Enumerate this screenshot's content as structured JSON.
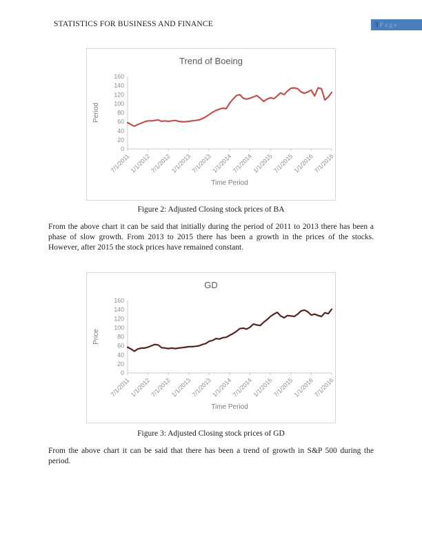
{
  "header": {
    "title": "STATISTICS FOR BUSINESS AND FINANCE",
    "page_number": "3",
    "page_suffix": "Page",
    "page_box_color": "#4a7ebb"
  },
  "figures": [
    {
      "caption": "Figure 2: Adjusted Closing stock prices of BA"
    },
    {
      "caption": "Figure 3: Adjusted Closing stock prices of GD"
    }
  ],
  "paragraphs": {
    "p1": "From the above chart it can be said that initially during the period of 2011 to 2013 there has been a phase of slow growth. From 2013 to 2015 there has been a growth in the prices of the stocks. However, after 2015 the stock prices have remained constant.",
    "p2": "From the above chart it can be said that there has been a trend of growth in S&P 500 during the period."
  },
  "chart_data": [
    {
      "type": "line",
      "title": "Trend of Boeing",
      "xlabel": "Time Period",
      "ylabel": "Period",
      "ylim": [
        0,
        160
      ],
      "y_ticks": [
        0,
        20,
        40,
        60,
        80,
        100,
        120,
        140,
        160
      ],
      "x_tick_labels": [
        "7/1/2011",
        "1/1/2012",
        "7/1/2012",
        "1/1/2013",
        "7/1/2013",
        "1/1/2014",
        "7/1/2014",
        "1/1/2015",
        "7/1/2015",
        "1/1/2016",
        "7/1/2016"
      ],
      "line_color": "#C0504D",
      "grid": false,
      "legend": false,
      "values": [
        58,
        54,
        50,
        54,
        57,
        60,
        62,
        62,
        63,
        64,
        61,
        62,
        61,
        62,
        63,
        61,
        60,
        60,
        61,
        62,
        63,
        64,
        67,
        71,
        76,
        81,
        85,
        88,
        90,
        89,
        101,
        110,
        118,
        120,
        112,
        110,
        112,
        115,
        118,
        112,
        105,
        110,
        113,
        111,
        117,
        124,
        120,
        128,
        134,
        135,
        133,
        126,
        123,
        126,
        130,
        117,
        135,
        133,
        108,
        115,
        125
      ]
    },
    {
      "type": "line",
      "title": "GD",
      "xlabel": "Time Period",
      "ylabel": "Price",
      "ylim": [
        0,
        160
      ],
      "y_ticks": [
        0,
        20,
        40,
        60,
        80,
        100,
        120,
        140,
        160
      ],
      "x_tick_labels": [
        "7/1/2011",
        "1/1/2012",
        "7/1/2012",
        "1/1/2013",
        "7/1/2013",
        "1/1/2014",
        "7/1/2014",
        "1/1/2015",
        "7/1/2015",
        "1/1/2016",
        "7/1/2016"
      ],
      "line_color": "#512422",
      "grid": false,
      "legend": false,
      "values": [
        57,
        53,
        48,
        53,
        55,
        55,
        57,
        60,
        63,
        62,
        56,
        55,
        54,
        55,
        54,
        55,
        56,
        57,
        58,
        58,
        59,
        60,
        63,
        65,
        70,
        72,
        76,
        75,
        78,
        79,
        83,
        87,
        92,
        98,
        99,
        97,
        101,
        108,
        106,
        105,
        112,
        118,
        125,
        130,
        134,
        126,
        122,
        127,
        126,
        125,
        130,
        137,
        139,
        135,
        128,
        130,
        127,
        125,
        133,
        131,
        141
      ]
    }
  ]
}
